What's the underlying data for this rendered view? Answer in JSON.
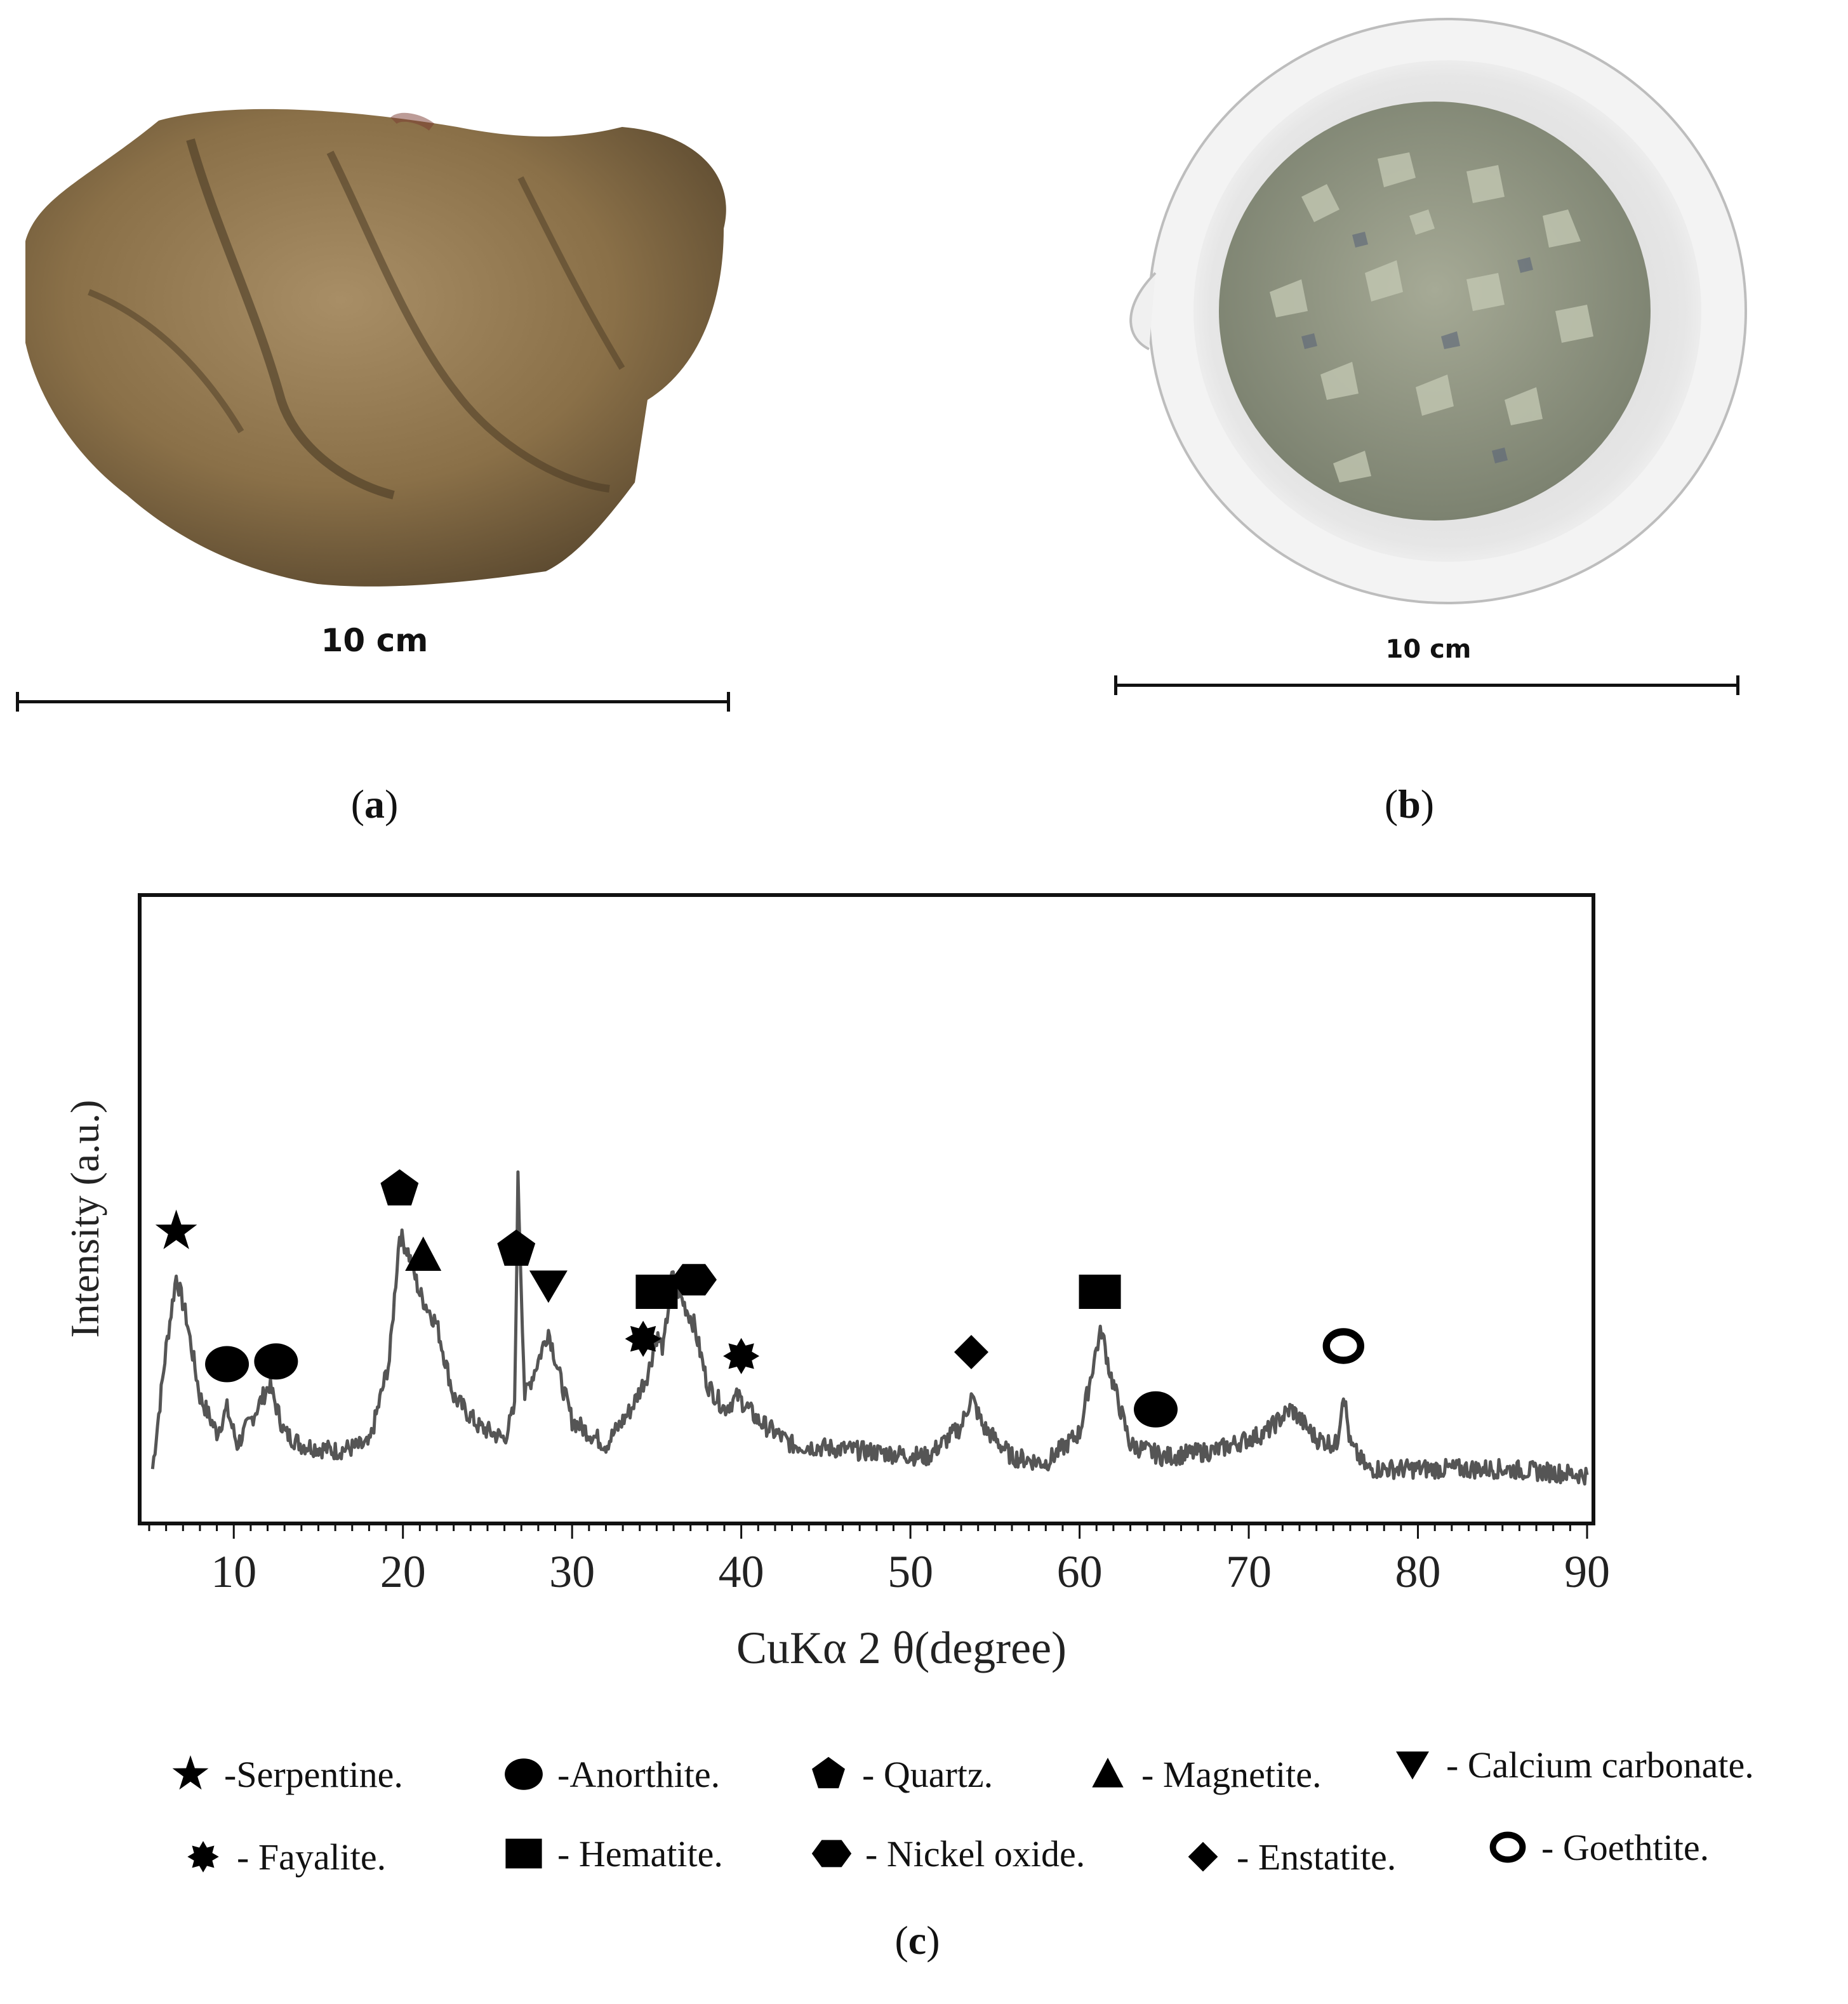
{
  "panels": {
    "a": {
      "label": "a",
      "scale_text": "10 cm"
    },
    "b": {
      "label": "b",
      "scale_text": "10 cm"
    },
    "c": {
      "label": "c"
    }
  },
  "chart_data": {
    "type": "line",
    "xlabel": "CuKα 2 θ(degree)",
    "ylabel": "Intensity (a.u.)",
    "xlim": [
      5,
      90
    ],
    "ylim": [
      0,
      100
    ],
    "xticks": [
      10,
      20,
      30,
      40,
      50,
      60,
      70,
      80,
      90
    ],
    "y_ticks_shown": false,
    "grid": false,
    "series": [
      {
        "color": "#555555",
        "x": [
          5.2,
          6.0,
          6.6,
          7.2,
          8.0,
          9.0,
          9.6,
          10.2,
          11.0,
          12.1,
          13.0,
          14.0,
          16.0,
          18.0,
          19.2,
          19.8,
          20.3,
          21.0,
          22.0,
          23.0,
          24.5,
          26.0,
          26.6,
          26.8,
          27.2,
          28.0,
          28.6,
          29.2,
          30.0,
          32.0,
          33.5,
          34.5,
          35.0,
          35.4,
          35.9,
          36.5,
          37.2,
          38.0,
          39.0,
          39.8,
          41.0,
          43.0,
          47.0,
          51.0,
          53.0,
          53.6,
          54.3,
          56.0,
          58.0,
          60.0,
          61.0,
          61.3,
          61.8,
          63.0,
          64.0,
          65.0,
          68.0,
          71.0,
          72.5,
          74.0,
          75.2,
          75.6,
          76.0,
          77.0,
          80.0,
          85.0,
          90.0
        ],
        "y": [
          8,
          28,
          40,
          33,
          20,
          14,
          18,
          12,
          16,
          22,
          14,
          12,
          11,
          12,
          26,
          47,
          44,
          37,
          32,
          20,
          15,
          13,
          18,
          56,
          20,
          26,
          31,
          24,
          16,
          12,
          18,
          24,
          30,
          28,
          40,
          36,
          32,
          22,
          18,
          20,
          16,
          12,
          11,
          10,
          15,
          20,
          15,
          10,
          9,
          14,
          28,
          31,
          24,
          12,
          11,
          10,
          11,
          14,
          18,
          13,
          12,
          21,
          12,
          8,
          8,
          8,
          7
        ]
      }
    ],
    "peak_markers": [
      {
        "phase": "Serpentine",
        "shape": "star",
        "x": 6.6
      },
      {
        "phase": "Anorthite",
        "shape": "circle",
        "x": 9.6
      },
      {
        "phase": "Anorthite",
        "shape": "circle",
        "x": 12.5
      },
      {
        "phase": "Quartz",
        "shape": "pentagon",
        "x": 19.8
      },
      {
        "phase": "Magnetite",
        "shape": "triangle-up",
        "x": 21.2
      },
      {
        "phase": "Quartz",
        "shape": "pentagon",
        "x": 26.7
      },
      {
        "phase": "Calcium carbonate",
        "shape": "triangle-down",
        "x": 28.6
      },
      {
        "phase": "Fayalite",
        "shape": "starburst",
        "x": 34.2
      },
      {
        "phase": "Hematite",
        "shape": "square",
        "x": 35.0
      },
      {
        "phase": "Nickel oxide",
        "shape": "hexagon",
        "x": 37.2
      },
      {
        "phase": "Fayalite",
        "shape": "starburst",
        "x": 40.0
      },
      {
        "phase": "Enstatite",
        "shape": "diamond",
        "x": 53.6
      },
      {
        "phase": "Hematite",
        "shape": "square",
        "x": 61.2
      },
      {
        "phase": "Anorthite",
        "shape": "circle",
        "x": 64.5
      },
      {
        "phase": "Goethtite",
        "shape": "ring",
        "x": 75.6
      }
    ]
  },
  "legend": [
    {
      "shape": "star",
      "text": "-Serpentine."
    },
    {
      "shape": "circle",
      "text": "-Anorthite."
    },
    {
      "shape": "pentagon",
      "text": "- Quartz."
    },
    {
      "shape": "triangle-up",
      "text": "- Magnetite."
    },
    {
      "shape": "triangle-down",
      "text": "- Calcium carbonate."
    },
    {
      "shape": "starburst",
      "text": "- Fayalite."
    },
    {
      "shape": "square",
      "text": "- Hematite."
    },
    {
      "shape": "hexagon",
      "text": "- Nickel oxide."
    },
    {
      "shape": "diamond",
      "text": "- Enstatite."
    },
    {
      "shape": "ring",
      "text": "- Goethtite."
    }
  ]
}
